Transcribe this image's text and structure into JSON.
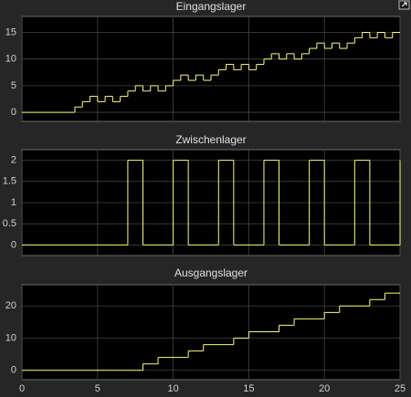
{
  "chart_data": [
    {
      "type": "line",
      "step": "post",
      "title": "Eingangslager",
      "color": "#ffff66",
      "grid": true,
      "x": [
        0,
        3.5,
        4,
        4.5,
        5,
        5.5,
        6,
        6.5,
        7,
        7.5,
        8,
        8.5,
        9,
        9.5,
        10,
        10.5,
        11,
        11.5,
        12,
        12.5,
        13,
        13.5,
        14,
        14.5,
        15,
        15.5,
        16,
        16.5,
        17,
        17.5,
        18,
        18.5,
        19,
        19.5,
        20,
        20.5,
        21,
        21.5,
        22,
        22.5,
        23,
        23.5,
        24,
        24.5,
        25
      ],
      "values": [
        0,
        1,
        2,
        3,
        2,
        3,
        2,
        3,
        4,
        5,
        4,
        5,
        4,
        5,
        6,
        7,
        6,
        7,
        6,
        7,
        8,
        9,
        8,
        9,
        8,
        9,
        10,
        11,
        10,
        11,
        10,
        11,
        12,
        13,
        12,
        13,
        12,
        13,
        14,
        15,
        14,
        15,
        14,
        15,
        15
      ],
      "xlim": [
        0,
        25
      ],
      "xticks": [
        0,
        5,
        10,
        15,
        20,
        25
      ],
      "ylim": [
        -1.7,
        18
      ],
      "yticks": [
        0,
        5,
        10,
        15
      ]
    },
    {
      "type": "line",
      "step": "post",
      "title": "Zwischenlager",
      "color": "#ffff66",
      "grid": true,
      "x": [
        0,
        7,
        8,
        10,
        11,
        13,
        14,
        16,
        17,
        19,
        20,
        22,
        23,
        25
      ],
      "values": [
        0,
        2,
        0,
        2,
        0,
        2,
        0,
        2,
        0,
        2,
        0,
        2,
        0,
        2
      ],
      "xlim": [
        0,
        25
      ],
      "xticks": [
        0,
        5,
        10,
        15,
        20,
        25
      ],
      "ylim": [
        -0.25,
        2.25
      ],
      "yticks": [
        0,
        0.5,
        1,
        1.5,
        2
      ]
    },
    {
      "type": "line",
      "step": "post",
      "title": "Ausgangslager",
      "color": "#ffff66",
      "grid": true,
      "x": [
        0,
        8,
        9,
        11,
        12,
        14,
        15,
        17,
        18,
        20,
        21,
        23,
        24,
        25
      ],
      "values": [
        0,
        2,
        4,
        6,
        8,
        10,
        12,
        14,
        16,
        18,
        20,
        22,
        24,
        24
      ],
      "xlim": [
        0,
        25
      ],
      "xticks": [
        0,
        5,
        10,
        15,
        20,
        25
      ],
      "ylim": [
        -2.9,
        26.6
      ],
      "yticks": [
        0,
        10,
        20
      ]
    }
  ]
}
